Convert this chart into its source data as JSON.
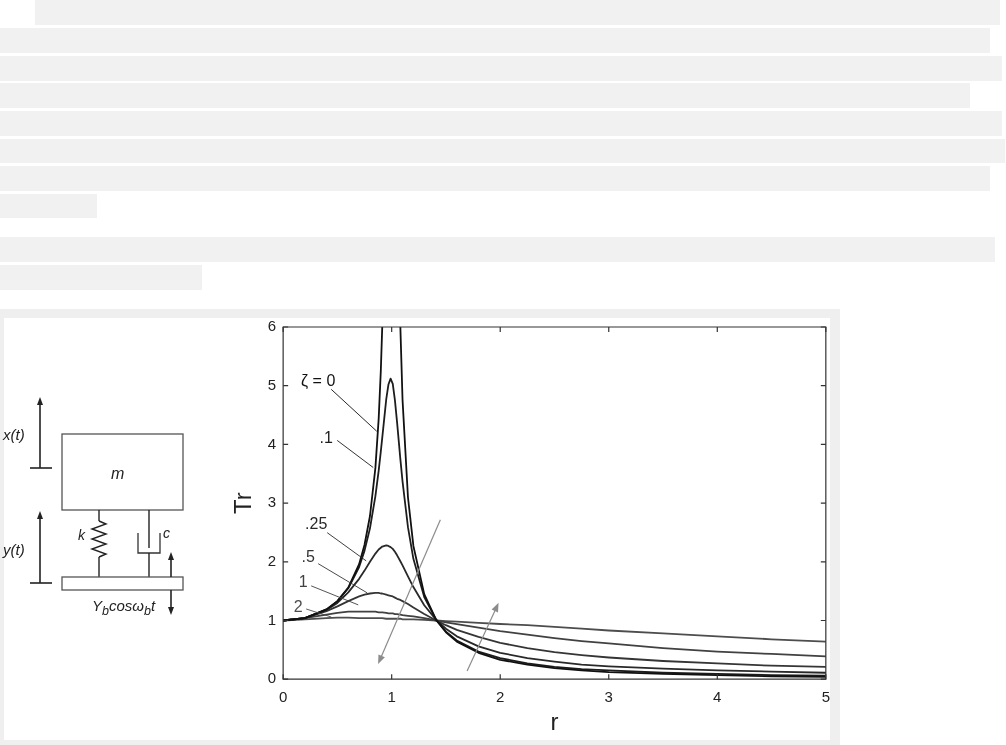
{
  "chart_data": {
    "type": "line",
    "xlabel": "r",
    "ylabel": "Tr",
    "x": [
      0,
      0.2,
      0.4,
      0.5,
      0.6,
      0.7,
      0.75,
      0.8,
      0.85,
      0.88,
      0.9,
      0.913,
      0.95,
      0.97,
      0.99,
      1.01,
      1.03,
      1.05,
      1.08,
      1.1,
      1.15,
      1.2,
      1.3,
      1.41,
      1.5,
      1.6,
      1.8,
      2,
      2.25,
      2.5,
      2.75,
      3,
      3.5,
      4,
      4.5,
      5
    ],
    "xlim": [
      0,
      5
    ],
    "xticks": [
      0,
      1,
      2,
      3,
      4,
      5
    ],
    "ylim": [
      0,
      6
    ],
    "yticks": [
      0,
      1,
      2,
      3,
      4,
      5,
      6
    ],
    "marker": "none",
    "series": [
      {
        "name": "ζ = 0",
        "color": "#111111",
        "values": [
          1,
          1.04,
          1.19,
          1.33,
          1.56,
          1.96,
          2.29,
          2.78,
          3.6,
          4.43,
          5.26,
          6,
          null,
          null,
          null,
          null,
          null,
          null,
          6,
          4.76,
          3.1,
          2.27,
          1.45,
          1.01,
          0.8,
          0.64,
          0.45,
          0.33,
          0.25,
          0.19,
          0.15,
          0.12,
          0.09,
          0.07,
          0.05,
          0.04
        ]
      },
      {
        "name": ".1",
        "color": "#1d1d1d",
        "values": [
          1,
          1.04,
          1.19,
          1.33,
          1.55,
          1.91,
          2.19,
          2.57,
          3.12,
          3.55,
          3.88,
          4.11,
          4.77,
          5.02,
          5.12,
          5.03,
          4.75,
          4.37,
          3.75,
          3.37,
          2.59,
          2.05,
          1.4,
          1.01,
          0.81,
          0.66,
          0.47,
          0.36,
          0.27,
          0.21,
          0.17,
          0.15,
          0.11,
          0.09,
          0.07,
          0.06
        ]
      },
      {
        "name": ".25",
        "color": "#292929",
        "values": [
          1,
          1.04,
          1.18,
          1.3,
          1.48,
          1.71,
          1.85,
          2,
          2.14,
          2.21,
          2.24,
          2.26,
          2.28,
          2.27,
          2.25,
          2.22,
          2.17,
          2.11,
          2.01,
          1.94,
          1.75,
          1.57,
          1.26,
          1.01,
          0.86,
          0.73,
          0.56,
          0.45,
          0.36,
          0.3,
          0.25,
          0.22,
          0.18,
          0.15,
          0.13,
          0.11
        ]
      },
      {
        "name": ".5",
        "color": "#353535",
        "values": [
          1,
          1.04,
          1.16,
          1.24,
          1.33,
          1.41,
          1.44,
          1.46,
          1.47,
          1.47,
          1.46,
          1.46,
          1.44,
          1.43,
          1.42,
          1.41,
          1.39,
          1.37,
          1.35,
          1.33,
          1.28,
          1.22,
          1.11,
          1,
          0.92,
          0.84,
          0.72,
          0.62,
          0.53,
          0.46,
          0.41,
          0.37,
          0.31,
          0.27,
          0.23,
          0.21
        ]
      },
      {
        "name": "1",
        "color": "#414141",
        "values": [
          1,
          1.04,
          1.1,
          1.13,
          1.15,
          1.15,
          1.15,
          1.15,
          1.15,
          1.14,
          1.14,
          1.14,
          1.13,
          1.12,
          1.12,
          1.12,
          1.11,
          1.11,
          1.1,
          1.09,
          1.08,
          1.07,
          1.04,
          1,
          0.97,
          0.94,
          0.88,
          0.82,
          0.76,
          0.7,
          0.65,
          0.61,
          0.53,
          0.47,
          0.43,
          0.39
        ]
      },
      {
        "name": "2",
        "color": "#4d4d4d",
        "values": [
          1,
          1.02,
          1.04,
          1.05,
          1.05,
          1.04,
          1.04,
          1.04,
          1.04,
          1.04,
          1.04,
          1.04,
          1.03,
          1.03,
          1.03,
          1.03,
          1.03,
          1.03,
          1.03,
          1.02,
          1.02,
          1.02,
          1.01,
          1,
          0.99,
          0.98,
          0.96,
          0.94,
          0.92,
          0.89,
          0.86,
          0.83,
          0.78,
          0.73,
          0.68,
          0.64
        ]
      }
    ],
    "annotations": [
      "x(t)",
      "m",
      "y(t)",
      "k",
      "c",
      "Y$_{b}$cosω$_{b}$t"
    ]
  }
}
